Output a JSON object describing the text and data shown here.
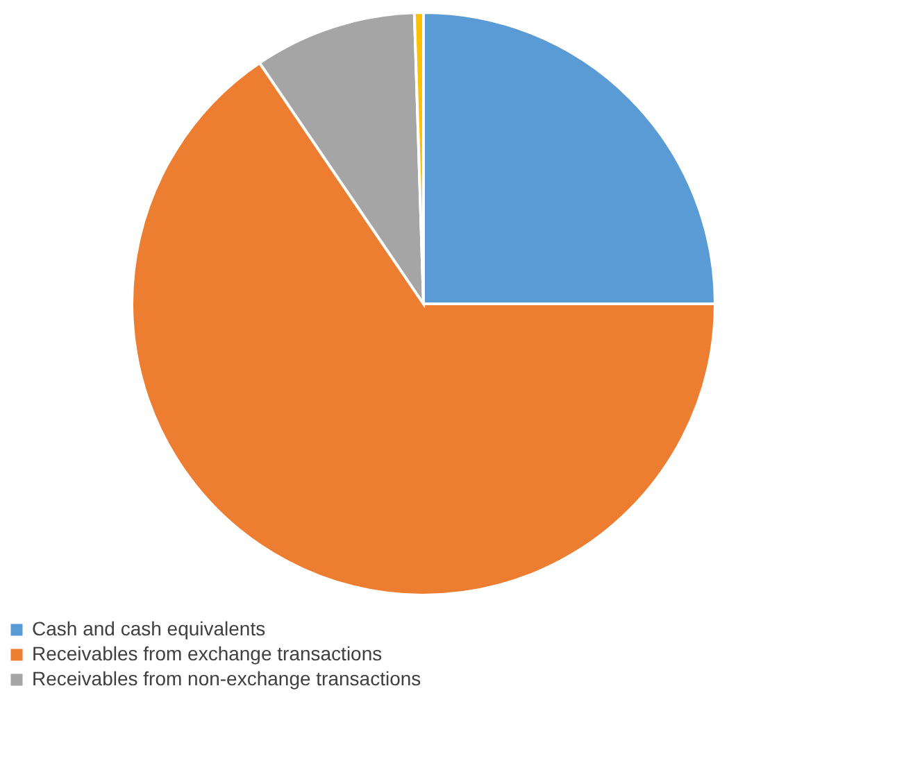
{
  "chart_data": {
    "type": "pie",
    "categories": [
      "Cash and cash equivalents",
      "Receivables from exchange transactions",
      "Receivables from non-exchange transactions",
      null
    ],
    "values": [
      25,
      65.5,
      9,
      0.5
    ],
    "colors": [
      "#5b9bd5",
      "#ed7d31",
      "#a5a5a5",
      "#ffc000"
    ],
    "legend": "bottom"
  }
}
